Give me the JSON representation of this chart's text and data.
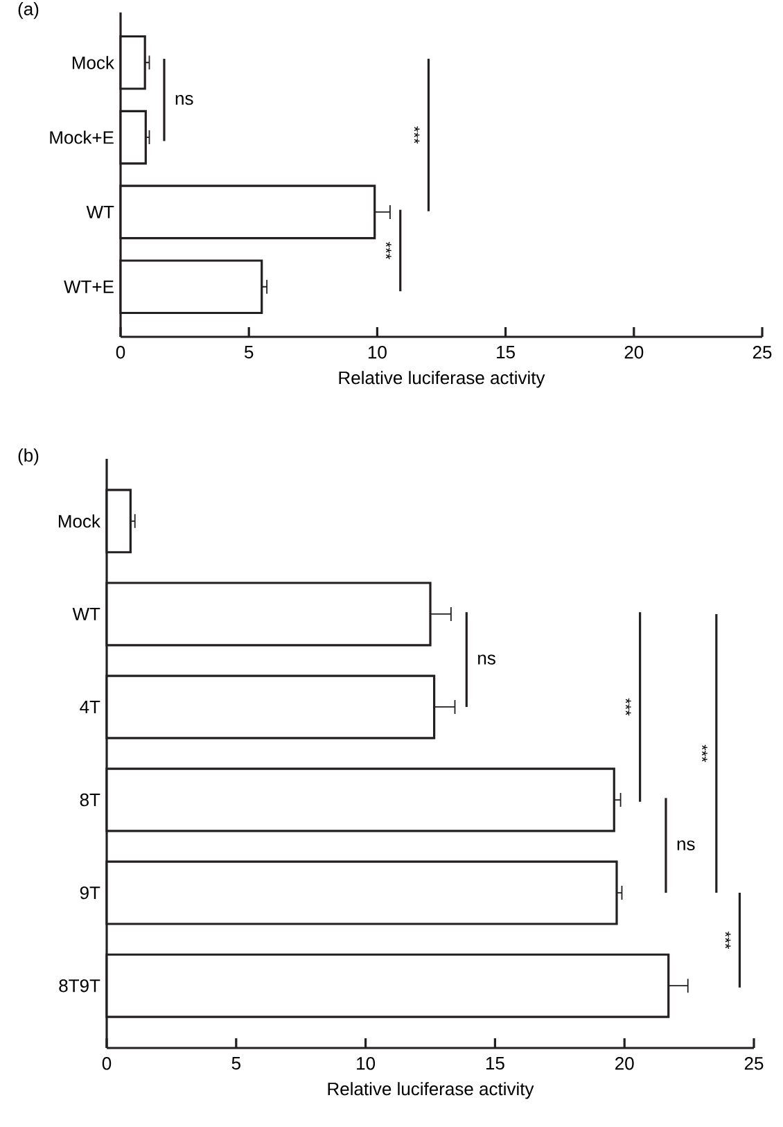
{
  "chart_data": [
    {
      "type": "bar",
      "orientation": "horizontal",
      "title": "(a)",
      "xlabel": "Relative luciferase activity",
      "categories": [
        "Mock",
        "Mock+E",
        "WT",
        "WT+E"
      ],
      "values": [
        0.95,
        0.98,
        9.9,
        5.5
      ],
      "errors": [
        [
          0.95,
          1.12
        ],
        [
          0.98,
          1.12
        ],
        [
          9.9,
          10.5
        ],
        [
          5.5,
          5.7
        ]
      ],
      "color": "#231f20",
      "xlim": [
        0,
        25
      ],
      "xticks": [
        0,
        5,
        10,
        15,
        20,
        25
      ],
      "annotations": [
        "ns",
        "***",
        "***"
      ]
    },
    {
      "type": "bar",
      "orientation": "horizontal",
      "title": "(b)",
      "xlabel": "Relative luciferase activity",
      "categories": [
        "Mock",
        "WT",
        "4T",
        "8T",
        "9T",
        "8T9T"
      ],
      "values": [
        0.92,
        12.5,
        12.65,
        19.6,
        19.7,
        21.7
      ],
      "errors": [
        [
          0.92,
          1.09
        ],
        [
          12.5,
          13.3
        ],
        [
          12.65,
          13.45
        ],
        [
          19.6,
          19.85
        ],
        [
          19.7,
          19.9
        ],
        [
          21.7,
          22.45
        ]
      ],
      "color": "#231f20",
      "xlim": [
        0,
        25
      ],
      "xticks": [
        0,
        5,
        10,
        15,
        20,
        25
      ],
      "annotations": [
        "ns",
        "***",
        "ns",
        "***",
        "***"
      ]
    }
  ]
}
